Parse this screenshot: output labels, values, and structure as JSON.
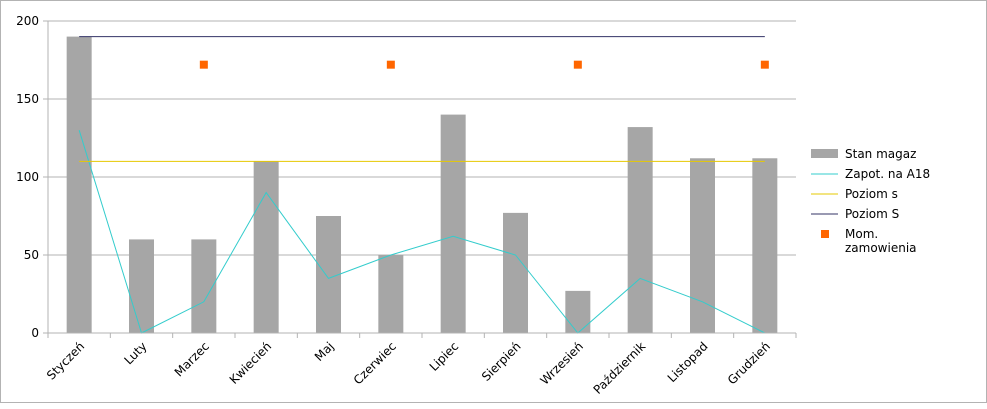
{
  "chart_data": {
    "type": "bar",
    "categories": [
      "Styczeń",
      "Luty",
      "Marzec",
      "Kwiecień",
      "Maj",
      "Czerwiec",
      "Lipiec",
      "Sierpień",
      "Wrzesień",
      "Październik",
      "Listopad",
      "Grudzień"
    ],
    "ylim": [
      0,
      200
    ],
    "yticks": [
      0,
      50,
      100,
      150,
      200
    ],
    "grid": true,
    "legend_position": "right",
    "series": [
      {
        "name": "Stan magaz",
        "kind": "bar",
        "color": "#a6a6a6",
        "values": [
          190,
          60,
          60,
          110,
          75,
          50,
          140,
          77,
          27,
          132,
          112,
          112
        ]
      },
      {
        "name": "Zapot. na A18",
        "kind": "line",
        "color": "#33cccc",
        "values": [
          130,
          0,
          20,
          90,
          35,
          50,
          62,
          50,
          0,
          35,
          20,
          0
        ]
      },
      {
        "name": "Poziom s",
        "kind": "line",
        "color": "#e6c800",
        "values": [
          110,
          110,
          110,
          110,
          110,
          110,
          110,
          110,
          110,
          110,
          110,
          110
        ]
      },
      {
        "name": "Poziom S",
        "kind": "line",
        "color": "#333366",
        "values": [
          190,
          190,
          190,
          190,
          190,
          190,
          190,
          190,
          190,
          190,
          190,
          190
        ]
      },
      {
        "name": "Mom. zamowienia",
        "name_lines": [
          "Mom.",
          "zamowienia"
        ],
        "kind": "marker",
        "color": "#ff6600",
        "values": [
          null,
          null,
          172,
          null,
          null,
          172,
          null,
          null,
          172,
          null,
          null,
          172
        ]
      }
    ]
  }
}
